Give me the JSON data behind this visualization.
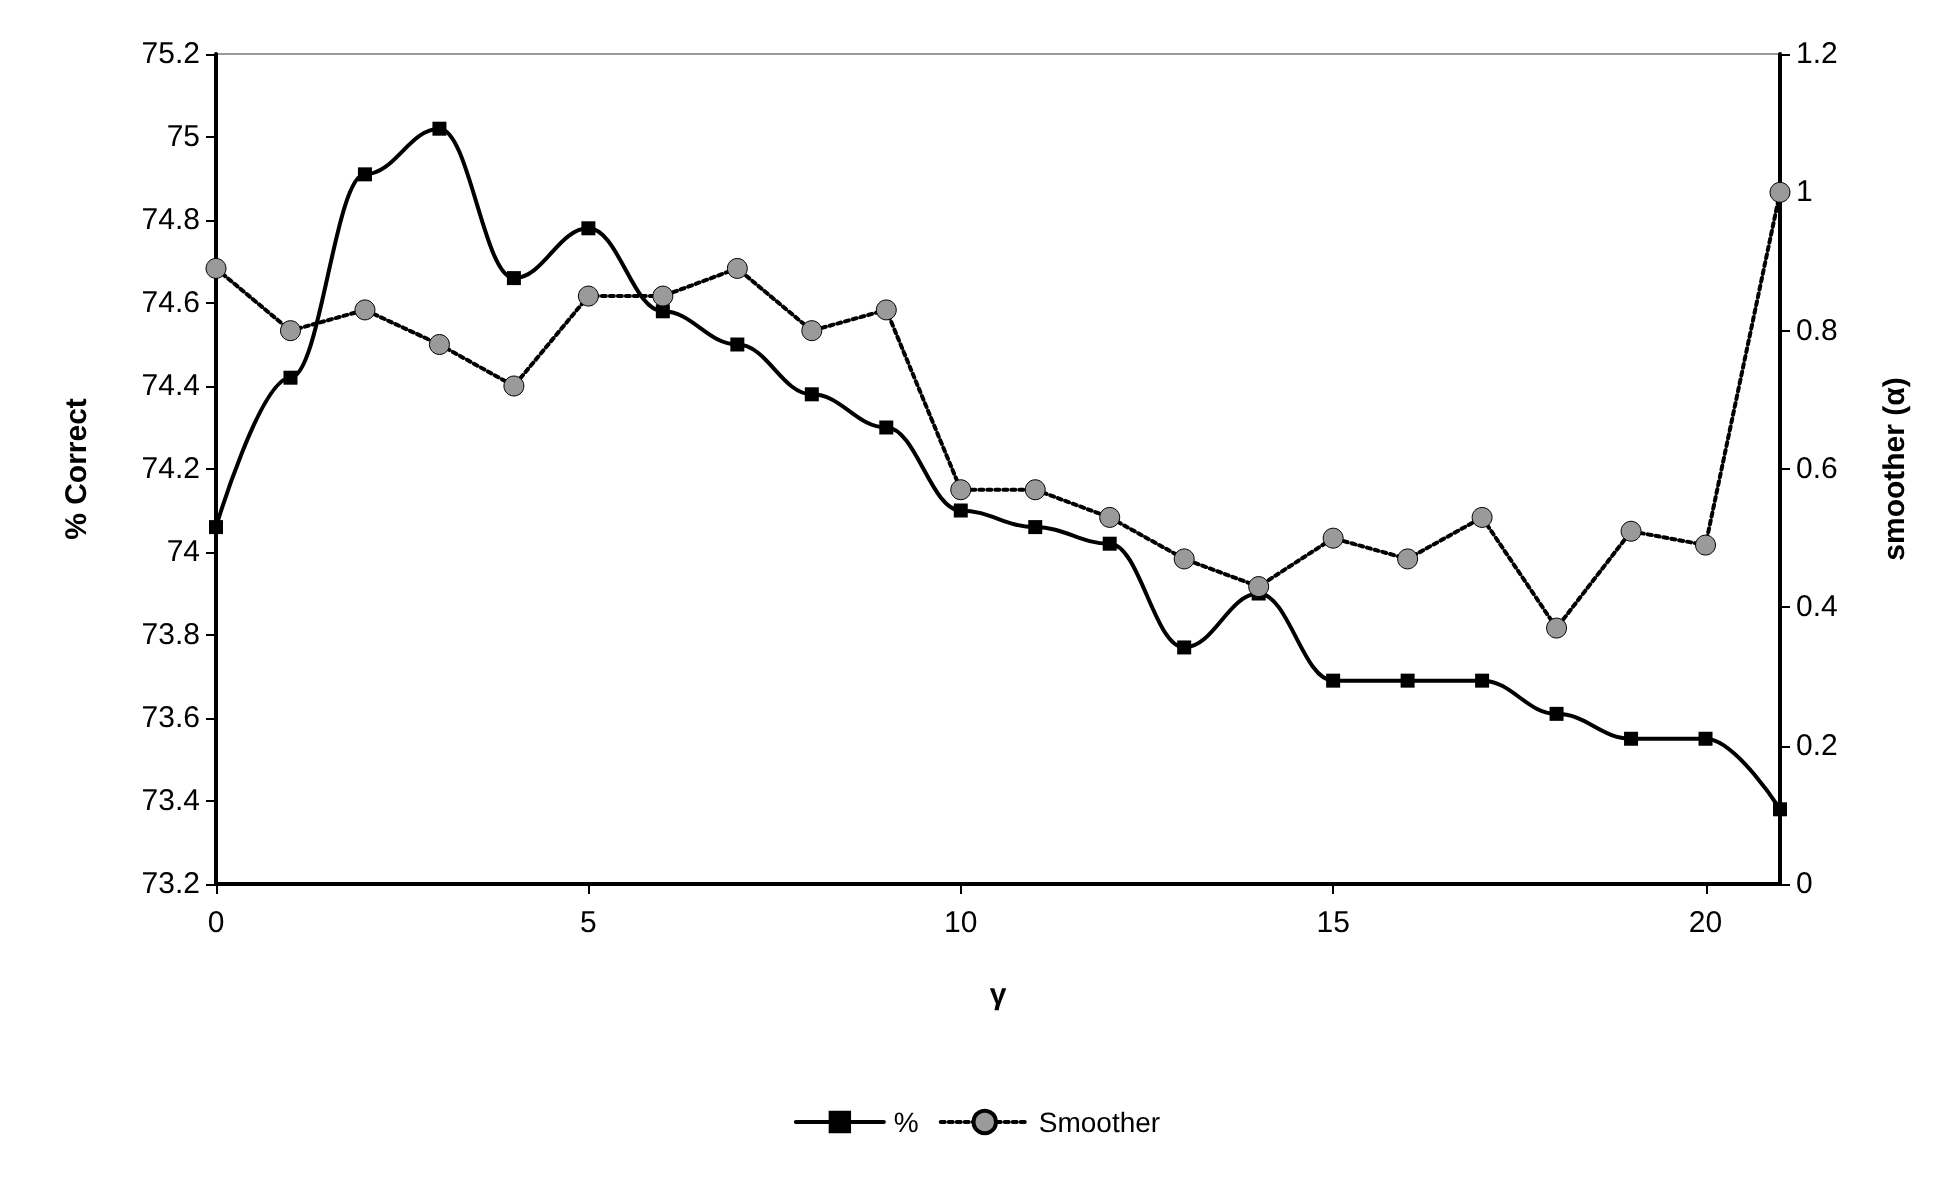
{
  "chart_data": {
    "type": "line",
    "xlabel": "γ",
    "ylabel": "% Correct",
    "y2label": "smoother (α)",
    "x": [
      0,
      1,
      2,
      3,
      4,
      5,
      6,
      7,
      8,
      9,
      10,
      11,
      12,
      13,
      14,
      15,
      16,
      17,
      18,
      19,
      20,
      21
    ],
    "series": [
      {
        "name": "%",
        "color": "#000000",
        "marker": "square",
        "line_style": "solid",
        "values": [
          74.06,
          74.42,
          74.91,
          75.02,
          74.66,
          74.78,
          74.58,
          74.5,
          74.38,
          74.3,
          74.1,
          74.06,
          74.02,
          73.77,
          73.9,
          73.69,
          73.69,
          73.69,
          73.61,
          73.55,
          73.55,
          73.38
        ]
      },
      {
        "name": "Smoother",
        "color": "#000000",
        "marker": "circle",
        "line_style": "dotted",
        "axis": "y2",
        "values": [
          0.89,
          0.8,
          0.83,
          0.78,
          0.72,
          0.85,
          0.85,
          0.89,
          0.8,
          0.83,
          0.57,
          0.57,
          0.53,
          0.47,
          0.43,
          0.5,
          0.47,
          0.53,
          0.37,
          0.51,
          0.49,
          1.0
        ]
      }
    ],
    "xlim": [
      0,
      21
    ],
    "xticks": [
      0,
      5,
      10,
      15,
      20
    ],
    "ylim": [
      73.2,
      75.2
    ],
    "yticks": [
      73.2,
      73.4,
      73.6,
      73.8,
      74,
      74.2,
      74.4,
      74.6,
      74.8,
      75,
      75.2
    ],
    "y2lim": [
      0,
      1.2
    ],
    "y2ticks": [
      0,
      0.2,
      0.4,
      0.6,
      0.8,
      1,
      1.2
    ],
    "grid": false,
    "legend": "bottom"
  }
}
